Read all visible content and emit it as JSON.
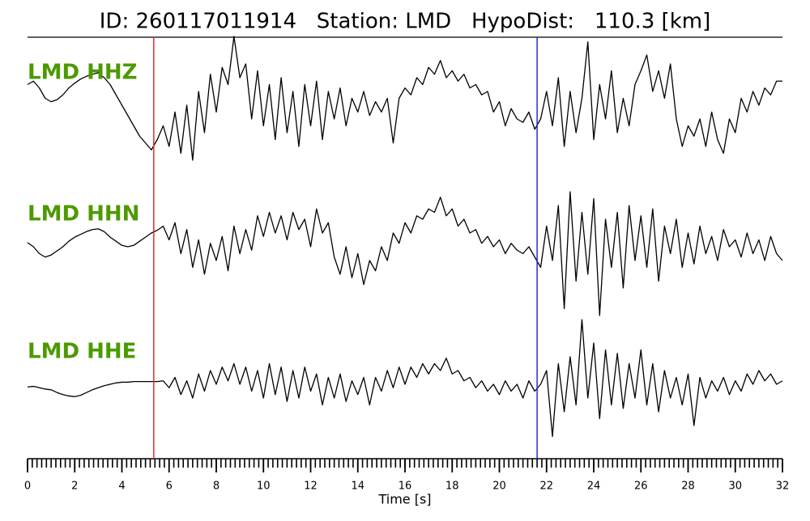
{
  "chart_data": {
    "type": "seismogram",
    "title": "ID: 260117011914   Station: LMD   HypoDist:   110.3 [km]",
    "xlabel": "Time [s]",
    "xlim": [
      0,
      32
    ],
    "xticks": [
      0,
      2,
      4,
      6,
      8,
      10,
      12,
      14,
      16,
      18,
      20,
      22,
      24,
      26,
      28,
      30,
      32
    ],
    "xminor_step": 0.2,
    "ylim": [
      -1,
      1
    ],
    "label_color": "#4c9a00",
    "markers": [
      {
        "x": 5.35,
        "color": "#e8282d"
      },
      {
        "x": 21.6,
        "color": "#2b2bd6"
      }
    ],
    "x": [
      0,
      0.25,
      0.5,
      0.75,
      1,
      1.25,
      1.5,
      1.75,
      2,
      2.25,
      2.5,
      2.75,
      3,
      3.25,
      3.5,
      3.75,
      4,
      4.25,
      4.5,
      4.75,
      5,
      5.25,
      5.5,
      5.75,
      6,
      6.25,
      6.5,
      6.75,
      7,
      7.25,
      7.5,
      7.75,
      8,
      8.25,
      8.5,
      8.75,
      9,
      9.25,
      9.5,
      9.75,
      10,
      10.25,
      10.5,
      10.75,
      11,
      11.25,
      11.5,
      11.75,
      12,
      12.25,
      12.5,
      12.75,
      13,
      13.25,
      13.5,
      13.75,
      14,
      14.25,
      14.5,
      14.75,
      15,
      15.25,
      15.5,
      15.75,
      16,
      16.25,
      16.5,
      16.75,
      17,
      17.25,
      17.5,
      17.75,
      18,
      18.25,
      18.5,
      18.75,
      19,
      19.25,
      19.5,
      19.75,
      20,
      20.25,
      20.5,
      20.75,
      21,
      21.25,
      21.5,
      21.75,
      22,
      22.25,
      22.5,
      22.75,
      23,
      23.25,
      23.5,
      23.75,
      24,
      24.25,
      24.5,
      24.75,
      25,
      25.25,
      25.5,
      25.75,
      26,
      26.25,
      26.5,
      26.75,
      27,
      27.25,
      27.5,
      27.75,
      28,
      28.25,
      28.5,
      28.75,
      29,
      29.25,
      29.5,
      29.75,
      30,
      30.25,
      30.5,
      30.75,
      31,
      31.25,
      31.5,
      31.75,
      32
    ],
    "series": [
      {
        "name": "LMD HHZ",
        "color": "#000000",
        "values": [
          0.3,
          0.35,
          0.25,
          0.1,
          0.05,
          0.08,
          0.15,
          0.25,
          0.32,
          0.38,
          0.42,
          0.45,
          0.47,
          0.4,
          0.3,
          0.15,
          0.0,
          -0.15,
          -0.3,
          -0.45,
          -0.55,
          -0.65,
          -0.5,
          -0.3,
          -0.6,
          -0.1,
          -0.7,
          0.0,
          -0.8,
          0.2,
          -0.4,
          0.45,
          -0.1,
          0.55,
          0.3,
          1.0,
          0.4,
          0.6,
          -0.2,
          0.5,
          -0.3,
          0.3,
          -0.5,
          0.4,
          -0.4,
          0.2,
          -0.6,
          0.3,
          -0.3,
          0.35,
          -0.5,
          0.2,
          -0.2,
          0.25,
          -0.3,
          0.1,
          -0.1,
          0.2,
          -0.15,
          0.05,
          -0.1,
          0.1,
          -0.55,
          0.1,
          0.25,
          0.15,
          0.4,
          0.3,
          0.55,
          0.45,
          0.65,
          0.4,
          0.5,
          0.35,
          0.45,
          0.25,
          0.3,
          0.15,
          0.2,
          -0.1,
          0.05,
          -0.3,
          -0.05,
          -0.2,
          -0.25,
          -0.1,
          -0.35,
          -0.2,
          0.2,
          -0.3,
          0.4,
          -0.6,
          0.2,
          -0.4,
          0.1,
          0.92,
          -0.5,
          0.3,
          -0.2,
          0.5,
          -0.4,
          0.1,
          -0.3,
          0.3,
          0.5,
          0.73,
          0.2,
          0.5,
          0.1,
          0.6,
          -0.2,
          -0.6,
          -0.3,
          -0.45,
          -0.2,
          -0.6,
          -0.1,
          -0.5,
          -0.7,
          -0.2,
          -0.4,
          0.1,
          -0.1,
          0.2,
          0.0,
          0.25,
          0.15,
          0.35,
          0.35
        ]
      },
      {
        "name": "LMD HHN",
        "color": "#000000",
        "values": [
          0.06,
          0.0,
          -0.1,
          -0.15,
          -0.12,
          -0.06,
          0.0,
          0.08,
          0.14,
          0.18,
          0.22,
          0.25,
          0.26,
          0.22,
          0.14,
          0.08,
          0.02,
          0.0,
          0.02,
          0.08,
          0.14,
          0.2,
          0.24,
          0.3,
          0.1,
          0.35,
          -0.1,
          0.25,
          -0.3,
          0.1,
          -0.4,
          0.05,
          -0.2,
          0.15,
          -0.35,
          0.3,
          -0.1,
          0.25,
          -0.05,
          0.45,
          0.15,
          0.5,
          0.2,
          0.45,
          0.1,
          0.5,
          0.25,
          0.4,
          0.0,
          0.55,
          0.2,
          0.35,
          -0.15,
          -0.4,
          0.0,
          -0.45,
          -0.1,
          -0.55,
          -0.2,
          -0.35,
          0.0,
          -0.2,
          0.2,
          0.05,
          0.35,
          0.2,
          0.45,
          0.4,
          0.55,
          0.5,
          0.72,
          0.45,
          0.55,
          0.3,
          0.4,
          0.2,
          0.25,
          0.05,
          0.15,
          0.0,
          0.1,
          -0.1,
          0.05,
          -0.05,
          -0.1,
          0.0,
          -0.15,
          -0.3,
          0.3,
          -0.2,
          0.6,
          -0.9,
          0.8,
          -0.5,
          0.5,
          -0.4,
          0.7,
          -1.0,
          0.4,
          -0.3,
          0.5,
          -0.6,
          0.6,
          -0.2,
          0.45,
          -0.3,
          0.55,
          -0.5,
          0.3,
          -0.1,
          0.4,
          -0.3,
          0.2,
          -0.25,
          0.3,
          -0.1,
          0.15,
          -0.2,
          0.25,
          0.0,
          0.1,
          -0.15,
          0.2,
          -0.1,
          0.1,
          -0.2,
          0.15,
          -0.1,
          -0.2
        ]
      },
      {
        "name": "LMD HHE",
        "color": "#000000",
        "values": [
          -0.04,
          -0.03,
          -0.05,
          -0.07,
          -0.08,
          -0.12,
          -0.15,
          -0.17,
          -0.18,
          -0.16,
          -0.12,
          -0.08,
          -0.05,
          -0.02,
          0.0,
          0.02,
          0.03,
          0.03,
          0.04,
          0.04,
          0.04,
          0.04,
          0.04,
          0.05,
          -0.05,
          0.1,
          -0.15,
          0.05,
          -0.2,
          0.15,
          -0.1,
          0.2,
          0.0,
          0.25,
          0.05,
          0.3,
          0.0,
          0.25,
          -0.1,
          0.2,
          -0.2,
          0.3,
          -0.15,
          0.25,
          -0.25,
          0.2,
          -0.2,
          0.25,
          -0.1,
          0.15,
          -0.3,
          0.1,
          -0.2,
          0.15,
          -0.25,
          0.05,
          -0.15,
          0.1,
          -0.3,
          0.1,
          -0.1,
          0.2,
          -0.05,
          0.25,
          0.0,
          0.25,
          0.1,
          0.3,
          0.15,
          0.3,
          0.2,
          0.38,
          0.15,
          0.2,
          0.05,
          0.1,
          -0.05,
          0.05,
          -0.1,
          0.0,
          -0.15,
          0.05,
          -0.1,
          0.0,
          -0.2,
          0.05,
          -0.1,
          0.0,
          0.2,
          -0.76,
          0.3,
          -0.4,
          0.4,
          -0.3,
          0.94,
          -0.2,
          0.6,
          -0.5,
          0.5,
          -0.3,
          0.45,
          -0.35,
          0.3,
          -0.2,
          0.5,
          -0.3,
          0.3,
          -0.4,
          0.2,
          -0.2,
          0.1,
          -0.3,
          0.15,
          -0.6,
          0.1,
          -0.2,
          0.05,
          -0.1,
          0.1,
          -0.15,
          0.05,
          -0.1,
          0.15,
          0.0,
          0.2,
          0.05,
          0.15,
          0.0,
          0.05
        ]
      }
    ]
  }
}
